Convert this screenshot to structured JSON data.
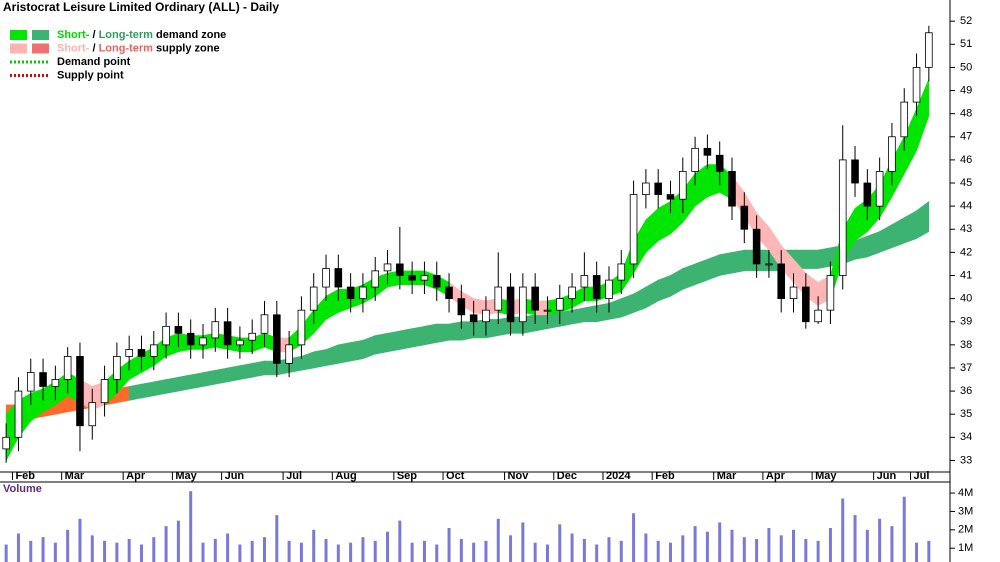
{
  "chart_data": {
    "type": "candlestick",
    "title": "Aristocrat Leisure Limited Ordinary (ALL) - Daily",
    "legend": [
      {
        "parts": [
          "Short-",
          " / ",
          "Long-term",
          " demand zone"
        ],
        "part_colors": [
          "#00d800",
          "#000000",
          "#2e9e5e",
          "#000000"
        ],
        "swatches": [
          "#00e600",
          "#3cb371"
        ],
        "style": "zone"
      },
      {
        "parts": [
          "Short-",
          " / ",
          "Long-term",
          " supply zone"
        ],
        "part_colors": [
          "#ffb3b3",
          "#000000",
          "#f06060",
          "#000000"
        ],
        "swatches": [
          "#ffb3b3",
          "#f07070"
        ],
        "style": "zone"
      },
      {
        "parts": [
          "Demand point"
        ],
        "part_colors": [
          "#000000"
        ],
        "swatches": [
          "#00cc00"
        ],
        "style": "dotted"
      },
      {
        "parts": [
          "Supply point"
        ],
        "part_colors": [
          "#000000"
        ],
        "swatches": [
          "#e00000"
        ],
        "style": "dotted"
      }
    ],
    "categories": [
      null,
      "Feb",
      null,
      null,
      null,
      "Mar",
      null,
      null,
      null,
      null,
      "Apr",
      null,
      null,
      null,
      "May",
      null,
      null,
      null,
      "Jun",
      null,
      null,
      null,
      null,
      "Jul",
      null,
      null,
      null,
      "Aug",
      null,
      null,
      null,
      null,
      "Sep",
      null,
      null,
      null,
      "Oct",
      null,
      null,
      null,
      null,
      "Nov",
      null,
      null,
      null,
      "Dec",
      null,
      null,
      null,
      "2024",
      null,
      null,
      null,
      "Feb",
      null,
      null,
      null,
      null,
      "Mar",
      null,
      null,
      null,
      "Apr",
      null,
      null,
      null,
      "May",
      null,
      null,
      null,
      null,
      "Jun",
      null,
      null,
      "Jul",
      null
    ],
    "open": [
      33.5,
      34.0,
      36.0,
      36.8,
      36.2,
      36.5,
      37.5,
      34.5,
      35.5,
      36.5,
      37.5,
      37.8,
      37.5,
      38.0,
      38.8,
      38.5,
      38.0,
      38.3,
      39.0,
      38.0,
      38.2,
      38.5,
      39.3,
      37.2,
      38.0,
      39.5,
      40.5,
      41.3,
      40.5,
      40.0,
      40.5,
      41.2,
      41.5,
      41.0,
      40.8,
      41.0,
      40.5,
      40.0,
      39.3,
      39.0,
      39.5,
      40.5,
      39.0,
      40.5,
      39.5,
      39.5,
      40.0,
      40.5,
      41.0,
      40.0,
      40.8,
      41.5,
      44.5,
      45.0,
      44.5,
      44.3,
      45.5,
      46.5,
      46.2,
      45.5,
      44.0,
      43.0,
      41.5,
      41.5,
      40.0,
      40.5,
      39.0,
      39.5,
      41.0,
      46.0,
      45.0,
      44.0,
      45.5,
      47.0,
      48.5,
      50.0
    ],
    "high": [
      34.6,
      36.6,
      37.4,
      37.4,
      37.1,
      37.9,
      38.1,
      36.1,
      37.1,
      38.1,
      38.4,
      38.4,
      38.6,
      39.4,
      39.4,
      39.1,
      38.9,
      39.6,
      39.6,
      38.8,
      39.1,
      39.9,
      39.9,
      38.6,
      40.1,
      41.1,
      41.9,
      41.9,
      41.1,
      41.1,
      41.8,
      42.1,
      43.1,
      41.6,
      41.6,
      41.6,
      41.1,
      40.6,
      39.9,
      40.1,
      42.0,
      41.1,
      41.1,
      41.1,
      40.1,
      40.6,
      41.1,
      42.0,
      41.6,
      41.4,
      42.1,
      45.1,
      45.6,
      45.6,
      45.1,
      46.1,
      47.0,
      47.1,
      46.8,
      46.1,
      44.6,
      43.6,
      42.1,
      42.1,
      41.1,
      41.1,
      40.1,
      41.6,
      47.5,
      46.6,
      45.6,
      46.1,
      47.6,
      49.1,
      50.6,
      51.8
    ],
    "low": [
      32.9,
      33.4,
      35.4,
      35.6,
      35.6,
      35.9,
      33.4,
      33.9,
      34.9,
      35.9,
      36.9,
      36.9,
      36.9,
      37.4,
      37.9,
      37.4,
      37.4,
      37.7,
      37.4,
      37.4,
      37.6,
      37.9,
      36.6,
      36.6,
      37.4,
      38.9,
      39.9,
      39.9,
      39.4,
      39.4,
      39.9,
      40.6,
      40.4,
      40.2,
      40.2,
      39.9,
      39.4,
      38.7,
      38.4,
      38.4,
      38.9,
      38.4,
      38.4,
      38.9,
      38.9,
      38.9,
      39.4,
      39.9,
      39.4,
      39.4,
      40.2,
      40.9,
      43.9,
      43.9,
      43.7,
      43.7,
      44.9,
      45.6,
      44.9,
      43.4,
      42.4,
      40.9,
      40.9,
      39.4,
      39.4,
      38.7,
      38.9,
      38.9,
      40.4,
      44.4,
      43.4,
      43.4,
      44.9,
      46.4,
      47.9,
      49.4
    ],
    "close": [
      34.0,
      36.0,
      36.8,
      36.2,
      36.5,
      37.5,
      34.5,
      35.5,
      36.5,
      37.5,
      37.8,
      37.5,
      38.0,
      38.8,
      38.5,
      38.0,
      38.3,
      39.0,
      38.0,
      38.2,
      38.5,
      39.3,
      37.2,
      38.0,
      39.5,
      40.5,
      41.3,
      40.5,
      40.0,
      40.5,
      41.2,
      41.5,
      41.0,
      40.8,
      41.0,
      40.5,
      40.0,
      39.3,
      39.0,
      39.5,
      40.5,
      39.0,
      40.5,
      39.5,
      39.5,
      40.0,
      40.5,
      41.0,
      40.0,
      40.8,
      41.5,
      44.5,
      45.0,
      44.5,
      44.3,
      45.5,
      46.5,
      46.2,
      45.5,
      44.0,
      43.0,
      41.5,
      41.5,
      40.0,
      40.5,
      39.0,
      39.5,
      41.0,
      46.0,
      45.0,
      44.0,
      45.5,
      47.0,
      48.5,
      50.0,
      51.5
    ],
    "zones": {
      "long": {
        "upper": [
          35.4,
          35.4,
          35.5,
          35.6,
          35.7,
          35.8,
          35.9,
          35.9,
          36.0,
          36.1,
          36.2,
          36.3,
          36.4,
          36.5,
          36.6,
          36.7,
          36.8,
          36.9,
          37.0,
          37.1,
          37.2,
          37.3,
          37.3,
          37.4,
          37.5,
          37.7,
          37.8,
          38.0,
          38.1,
          38.2,
          38.4,
          38.5,
          38.6,
          38.7,
          38.8,
          38.9,
          38.9,
          39.0,
          39.0,
          39.1,
          39.1,
          39.2,
          39.2,
          39.3,
          39.3,
          39.4,
          39.5,
          39.6,
          39.7,
          39.8,
          40.0,
          40.2,
          40.5,
          40.8,
          41.0,
          41.3,
          41.5,
          41.7,
          41.9,
          42.0,
          42.1,
          42.1,
          42.1,
          42.1,
          42.1,
          42.1,
          42.1,
          42.2,
          42.3,
          42.5,
          42.7,
          42.9,
          43.2,
          43.5,
          43.8,
          44.2
        ],
        "lower": [
          34.6,
          34.7,
          34.8,
          34.9,
          35.0,
          35.1,
          35.2,
          35.3,
          35.4,
          35.5,
          35.6,
          35.7,
          35.8,
          35.9,
          36.0,
          36.1,
          36.2,
          36.3,
          36.4,
          36.5,
          36.6,
          36.7,
          36.7,
          36.8,
          36.9,
          37.0,
          37.1,
          37.2,
          37.3,
          37.4,
          37.6,
          37.7,
          37.8,
          37.9,
          38.0,
          38.1,
          38.2,
          38.2,
          38.3,
          38.3,
          38.4,
          38.5,
          38.5,
          38.6,
          38.7,
          38.8,
          38.9,
          39.0,
          39.0,
          39.1,
          39.2,
          39.4,
          39.6,
          39.9,
          40.1,
          40.4,
          40.6,
          40.8,
          41.0,
          41.1,
          41.2,
          41.2,
          41.2,
          41.2,
          41.3,
          41.3,
          41.3,
          41.4,
          41.5,
          41.7,
          41.8,
          42.0,
          42.2,
          42.4,
          42.6,
          42.9
        ],
        "state": [
          "supply",
          "supply",
          "supply",
          "supply",
          "supply",
          "supply",
          "supply",
          "supply",
          "supply",
          "supply",
          "demand",
          "demand",
          "demand",
          "demand",
          "demand",
          "demand",
          "demand",
          "demand",
          "demand",
          "demand",
          "demand",
          "demand",
          "demand",
          "demand",
          "demand",
          "demand",
          "demand",
          "demand",
          "demand",
          "demand",
          "demand",
          "demand",
          "demand",
          "demand",
          "demand",
          "demand",
          "demand",
          "demand",
          "demand",
          "demand",
          "demand",
          "demand",
          "demand",
          "demand",
          "demand",
          "demand",
          "demand",
          "demand",
          "demand",
          "demand",
          "demand",
          "demand",
          "demand",
          "demand",
          "demand",
          "demand",
          "demand",
          "demand",
          "demand",
          "demand",
          "demand",
          "demand",
          "demand",
          "demand",
          "demand",
          "demand",
          "demand",
          "demand",
          "demand",
          "demand",
          "demand",
          "demand",
          "demand",
          "demand",
          "demand",
          "demand"
        ],
        "colors": {
          "demand": "#3cb371",
          "supply": "#ff6a2a"
        }
      },
      "short": {
        "upper": [
          35.0,
          35.6,
          35.9,
          36.1,
          36.4,
          36.8,
          36.5,
          36.2,
          36.4,
          36.9,
          37.3,
          37.6,
          37.9,
          38.3,
          38.5,
          38.4,
          38.4,
          38.5,
          38.4,
          38.3,
          38.3,
          38.5,
          38.3,
          38.3,
          38.8,
          39.5,
          40.1,
          40.4,
          40.4,
          40.6,
          40.9,
          41.1,
          41.2,
          41.2,
          41.2,
          41.0,
          40.7,
          40.3,
          40.0,
          39.9,
          40.0,
          39.9,
          40.0,
          39.9,
          39.9,
          40.0,
          40.2,
          40.5,
          40.5,
          40.7,
          41.1,
          42.5,
          43.4,
          43.9,
          44.2,
          44.7,
          45.4,
          45.8,
          45.8,
          45.3,
          44.6,
          43.7,
          43.1,
          42.3,
          41.7,
          41.1,
          40.7,
          41.0,
          43.0,
          43.9,
          44.3,
          44.9,
          46.0,
          47.0,
          48.2,
          49.5
        ],
        "lower": [
          33.0,
          34.0,
          34.7,
          35.1,
          35.4,
          35.8,
          35.5,
          35.2,
          35.4,
          35.9,
          36.5,
          36.8,
          37.1,
          37.5,
          37.7,
          37.8,
          37.8,
          37.9,
          37.8,
          37.7,
          37.7,
          37.9,
          37.7,
          37.7,
          38.0,
          38.5,
          39.1,
          39.4,
          39.6,
          39.8,
          40.1,
          40.5,
          40.6,
          40.6,
          40.6,
          40.4,
          40.1,
          39.7,
          39.4,
          39.3,
          39.4,
          39.3,
          39.4,
          39.3,
          39.3,
          39.4,
          39.6,
          39.9,
          39.9,
          40.1,
          40.3,
          41.1,
          42.0,
          42.5,
          42.8,
          43.3,
          44.0,
          44.4,
          44.6,
          44.3,
          43.6,
          42.7,
          42.1,
          41.3,
          40.7,
          40.1,
          39.7,
          40.0,
          41.6,
          42.5,
          42.9,
          43.5,
          44.4,
          45.4,
          46.4,
          47.9
        ],
        "state": [
          "demand",
          "demand",
          "demand",
          "demand",
          "demand",
          "demand",
          "supply",
          "supply",
          "demand",
          "demand",
          "demand",
          "demand",
          "demand",
          "demand",
          "demand",
          "demand",
          "demand",
          "demand",
          "demand",
          "demand",
          "demand",
          "demand",
          "supply",
          "demand",
          "demand",
          "demand",
          "demand",
          "demand",
          "demand",
          "demand",
          "demand",
          "demand",
          "demand",
          "demand",
          "demand",
          "demand",
          "supply",
          "supply",
          "supply",
          "supply",
          "demand",
          "supply",
          "demand",
          "supply",
          "demand",
          "demand",
          "demand",
          "demand",
          "demand",
          "demand",
          "demand",
          "demand",
          "demand",
          "demand",
          "demand",
          "demand",
          "demand",
          "demand",
          "demand",
          "supply",
          "supply",
          "supply",
          "supply",
          "supply",
          "supply",
          "supply",
          "supply",
          "demand",
          "demand",
          "demand",
          "demand",
          "demand",
          "demand",
          "demand",
          "demand",
          "demand"
        ],
        "colors": {
          "demand": "#00e600",
          "supply": "#ffb6b6"
        }
      }
    },
    "ylim": [
      32.5,
      52.7
    ],
    "yticks": [
      33,
      34,
      35,
      36,
      37,
      38,
      39,
      40,
      41,
      42,
      43,
      44,
      45,
      46,
      47,
      48,
      49,
      50,
      51,
      52
    ],
    "volume": {
      "label": "Volume",
      "color": "#7a78d8",
      "values": [
        1200000,
        1800000,
        1400000,
        1600000,
        1300000,
        2000000,
        2600000,
        1700000,
        1400000,
        1300000,
        1500000,
        1200000,
        1600000,
        2200000,
        2500000,
        4100000,
        1300000,
        1500000,
        1800000,
        1200000,
        1400000,
        1600000,
        2800000,
        1400000,
        1300000,
        2000000,
        1500000,
        1200000,
        1300000,
        1600000,
        1400000,
        1900000,
        2500000,
        1300000,
        1400000,
        1200000,
        2100000,
        1500000,
        1300000,
        1400000,
        2600000,
        1700000,
        2400000,
        1300000,
        1200000,
        2300000,
        1800000,
        1500000,
        1200000,
        1600000,
        1400000,
        2900000,
        1800000,
        1400000,
        1300000,
        1700000,
        2200000,
        1900000,
        2400000,
        2000000,
        1600000,
        1500000,
        2100000,
        1700000,
        2000000,
        1500000,
        1400000,
        2100000,
        3700000,
        2800000,
        2000000,
        2600000,
        2200000,
        3800000,
        1300000,
        1400000
      ],
      "ylim": [
        250000,
        4600000
      ],
      "yticks": [
        {
          "value": 1000000,
          "label": "1M"
        },
        {
          "value": 2000000,
          "label": "2M"
        },
        {
          "value": 3000000,
          "label": "3M"
        },
        {
          "value": 4000000,
          "label": "4M"
        }
      ]
    }
  }
}
